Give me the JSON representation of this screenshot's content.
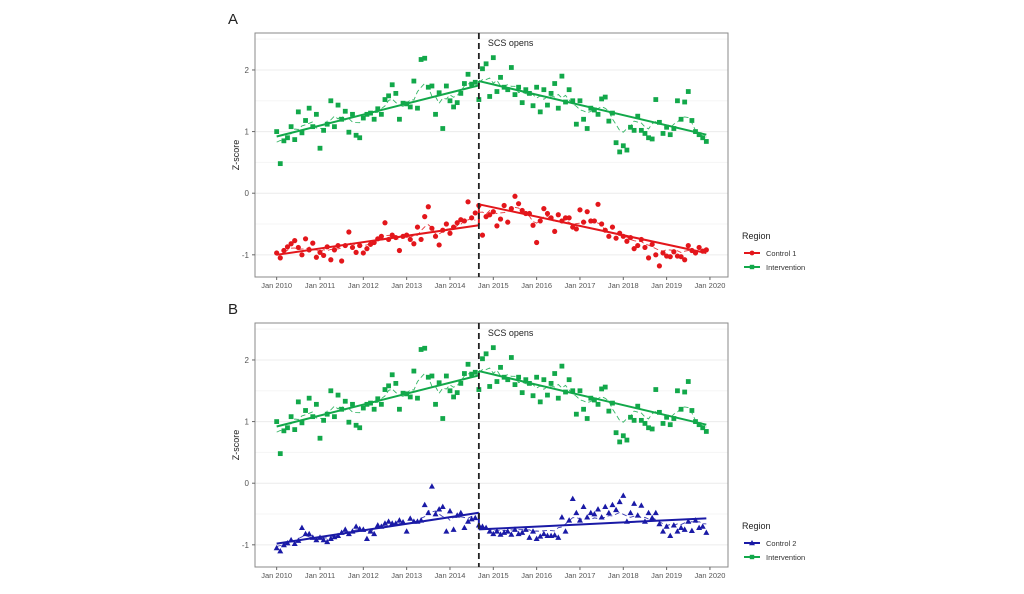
{
  "chart_data": [
    {
      "panel_label": "A",
      "type": "line",
      "ylabel": "Z-score",
      "xlabel": "",
      "xticks": [
        "Jan 2010",
        "Jan 2011",
        "Jan 2012",
        "Jan 2013",
        "Jan 2014",
        "Jan 2015",
        "Jan 2016",
        "Jan 2017",
        "Jan 2018",
        "Jan 2019",
        "Jan 2020"
      ],
      "yticks": [
        -1,
        0,
        1,
        2
      ],
      "ylim": [
        -1.36,
        2.6
      ],
      "xlim": [
        "2009-07",
        "2020-06"
      ],
      "grid": true,
      "annotation": {
        "label": "SCS opens",
        "date": "2014-09",
        "style": "dashed vertical line"
      },
      "legend": {
        "title": "Region",
        "placement": "right",
        "entries": [
          "Control 1",
          "Intervention"
        ]
      },
      "time": {
        "first_month": "2010-01",
        "last_month": "2019-12",
        "frequency": "monthly",
        "interruption": "2014-09"
      },
      "series": [
        {
          "name": "Control 1",
          "color": "#e3161b",
          "marker": "circle",
          "trend": {
            "pre": [
              -1.0,
              -0.52
            ],
            "post": [
              -0.18,
              -0.97
            ]
          },
          "values": [
            -0.97,
            -1.05,
            -0.93,
            -0.87,
            -0.82,
            -0.77,
            -0.88,
            -1.0,
            -0.74,
            -0.92,
            -0.81,
            -1.04,
            -0.96,
            -1.01,
            -0.87,
            -1.08,
            -0.92,
            -0.85,
            -1.1,
            -0.85,
            -0.63,
            -0.88,
            -0.96,
            -0.85,
            -0.97,
            -0.9,
            -0.83,
            -0.8,
            -0.74,
            -0.7,
            -0.48,
            -0.75,
            -0.68,
            -0.72,
            -0.93,
            -0.7,
            -0.68,
            -0.75,
            -0.82,
            -0.55,
            -0.75,
            -0.38,
            -0.22,
            -0.57,
            -0.7,
            -0.84,
            -0.6,
            -0.5,
            -0.65,
            -0.55,
            -0.48,
            -0.43,
            -0.45,
            -0.14,
            -0.4,
            -0.32,
            -0.2,
            -0.68,
            -0.38,
            -0.35,
            -0.3,
            -0.53,
            -0.42,
            -0.2,
            -0.47,
            -0.25,
            -0.05,
            -0.17,
            -0.28,
            -0.33,
            -0.33,
            -0.52,
            -0.8,
            -0.45,
            -0.25,
            -0.33,
            -0.4,
            -0.62,
            -0.35,
            -0.45,
            -0.4,
            -0.4,
            -0.55,
            -0.58,
            -0.27,
            -0.47,
            -0.3,
            -0.45,
            -0.45,
            -0.18,
            -0.5,
            -0.6,
            -0.7,
            -0.55,
            -0.73,
            -0.65,
            -0.7,
            -0.78,
            -0.72,
            -0.9,
            -0.85,
            -0.75,
            -0.88,
            -1.05,
            -0.83,
            -1.0,
            -1.18,
            -0.97,
            -1.02,
            -1.03,
            -0.95,
            -1.02,
            -1.03,
            -1.08,
            -0.85,
            -0.93,
            -0.97,
            -0.88,
            -0.94,
            -0.92
          ]
        },
        {
          "name": "Intervention",
          "color": "#12a84a",
          "marker": "square",
          "trend": {
            "pre": [
              0.92,
              1.75
            ],
            "post": [
              1.82,
              0.95
            ]
          },
          "values": [
            1.0,
            0.48,
            0.85,
            0.9,
            1.08,
            0.87,
            1.32,
            0.98,
            1.18,
            1.38,
            1.08,
            1.28,
            0.73,
            1.02,
            1.12,
            1.5,
            1.08,
            1.43,
            1.2,
            1.33,
            0.99,
            1.28,
            0.94,
            0.9,
            1.22,
            1.28,
            1.3,
            1.2,
            1.37,
            1.28,
            1.52,
            1.58,
            1.76,
            1.62,
            1.2,
            1.46,
            1.45,
            1.4,
            1.82,
            1.38,
            2.17,
            2.19,
            1.72,
            1.74,
            1.28,
            1.63,
            1.05,
            1.74,
            1.5,
            1.4,
            1.47,
            1.62,
            1.78,
            1.93,
            1.77,
            1.8,
            1.52,
            2.02,
            2.1,
            1.57,
            2.2,
            1.65,
            1.88,
            1.72,
            1.68,
            2.04,
            1.6,
            1.72,
            1.47,
            1.68,
            1.62,
            1.42,
            1.72,
            1.32,
            1.68,
            1.43,
            1.62,
            1.78,
            1.38,
            1.9,
            1.48,
            1.68,
            1.5,
            1.12,
            1.5,
            1.2,
            1.05,
            1.38,
            1.35,
            1.28,
            1.53,
            1.56,
            1.17,
            1.3,
            0.82,
            0.67,
            0.77,
            0.7,
            1.07,
            1.02,
            1.25,
            1.02,
            0.97,
            0.9,
            0.88,
            1.52,
            1.15,
            0.97,
            1.07,
            0.95,
            1.05,
            1.5,
            1.2,
            1.48,
            1.65,
            1.18,
            1.0,
            0.95,
            0.9,
            0.84
          ]
        }
      ]
    },
    {
      "panel_label": "B",
      "type": "line",
      "ylabel": "Z-score",
      "xlabel": "",
      "xticks": [
        "Jan 2010",
        "Jan 2011",
        "Jan 2012",
        "Jan 2013",
        "Jan 2014",
        "Jan 2015",
        "Jan 2016",
        "Jan 2017",
        "Jan 2018",
        "Jan 2019",
        "Jan 2020"
      ],
      "yticks": [
        -1,
        0,
        1,
        2
      ],
      "ylim": [
        -1.36,
        2.6
      ],
      "xlim": [
        "2009-07",
        "2020-06"
      ],
      "grid": true,
      "annotation": {
        "label": "SCS opens",
        "date": "2014-09",
        "style": "dashed vertical line"
      },
      "legend": {
        "title": "Region",
        "placement": "right",
        "entries": [
          "Control 2",
          "Intervention"
        ]
      },
      "time": {
        "first_month": "2010-01",
        "last_month": "2019-12",
        "frequency": "monthly",
        "interruption": "2014-09"
      },
      "series": [
        {
          "name": "Control 2",
          "color": "#1a1aa6",
          "marker": "triangle",
          "trend": {
            "pre": [
              -0.98,
              -0.48
            ],
            "post": [
              -0.75,
              -0.57
            ]
          },
          "values": [
            -1.05,
            -1.1,
            -1.0,
            -0.97,
            -0.92,
            -0.98,
            -0.93,
            -0.72,
            -0.82,
            -0.82,
            -0.88,
            -0.92,
            -0.88,
            -0.92,
            -0.95,
            -0.9,
            -0.87,
            -0.85,
            -0.8,
            -0.75,
            -0.82,
            -0.78,
            -0.7,
            -0.74,
            -0.75,
            -0.9,
            -0.78,
            -0.82,
            -0.68,
            -0.7,
            -0.65,
            -0.62,
            -0.65,
            -0.65,
            -0.6,
            -0.63,
            -0.78,
            -0.57,
            -0.62,
            -0.62,
            -0.6,
            -0.35,
            -0.48,
            -0.05,
            -0.5,
            -0.42,
            -0.38,
            -0.78,
            -0.45,
            -0.75,
            -0.52,
            -0.48,
            -0.72,
            -0.62,
            -0.58,
            -0.56,
            -0.68,
            -0.7,
            -0.72,
            -0.78,
            -0.82,
            -0.78,
            -0.83,
            -0.8,
            -0.78,
            -0.83,
            -0.75,
            -0.82,
            -0.8,
            -0.75,
            -0.88,
            -0.78,
            -0.9,
            -0.86,
            -0.82,
            -0.85,
            -0.85,
            -0.84,
            -0.88,
            -0.55,
            -0.78,
            -0.6,
            -0.25,
            -0.48,
            -0.6,
            -0.38,
            -0.55,
            -0.48,
            -0.5,
            -0.42,
            -0.55,
            -0.38,
            -0.48,
            -0.35,
            -0.43,
            -0.3,
            -0.2,
            -0.62,
            -0.48,
            -0.33,
            -0.52,
            -0.36,
            -0.62,
            -0.48,
            -0.56,
            -0.48,
            -0.66,
            -0.78,
            -0.7,
            -0.85,
            -0.68,
            -0.78,
            -0.72,
            -0.75,
            -0.62,
            -0.77,
            -0.6,
            -0.72,
            -0.7,
            -0.8
          ]
        },
        {
          "name": "Intervention",
          "color": "#12a84a",
          "marker": "square",
          "trend": {
            "pre": [
              0.92,
              1.75
            ],
            "post": [
              1.82,
              0.95
            ]
          },
          "values": [
            1.0,
            0.48,
            0.85,
            0.9,
            1.08,
            0.87,
            1.32,
            0.98,
            1.18,
            1.38,
            1.08,
            1.28,
            0.73,
            1.02,
            1.12,
            1.5,
            1.08,
            1.43,
            1.2,
            1.33,
            0.99,
            1.28,
            0.94,
            0.9,
            1.22,
            1.28,
            1.3,
            1.2,
            1.37,
            1.28,
            1.52,
            1.58,
            1.76,
            1.62,
            1.2,
            1.46,
            1.45,
            1.4,
            1.82,
            1.38,
            2.17,
            2.19,
            1.72,
            1.74,
            1.28,
            1.63,
            1.05,
            1.74,
            1.5,
            1.4,
            1.47,
            1.62,
            1.78,
            1.93,
            1.77,
            1.8,
            1.52,
            2.02,
            2.1,
            1.57,
            2.2,
            1.65,
            1.88,
            1.72,
            1.68,
            2.04,
            1.6,
            1.72,
            1.47,
            1.68,
            1.62,
            1.42,
            1.72,
            1.32,
            1.68,
            1.43,
            1.62,
            1.78,
            1.38,
            1.9,
            1.48,
            1.68,
            1.5,
            1.12,
            1.5,
            1.2,
            1.05,
            1.38,
            1.35,
            1.28,
            1.53,
            1.56,
            1.17,
            1.3,
            0.82,
            0.67,
            0.77,
            0.7,
            1.07,
            1.02,
            1.25,
            1.02,
            0.97,
            0.9,
            0.88,
            1.52,
            1.15,
            0.97,
            1.07,
            0.95,
            1.05,
            1.5,
            1.2,
            1.48,
            1.65,
            1.18,
            1.0,
            0.95,
            0.9,
            0.84
          ]
        }
      ]
    }
  ]
}
